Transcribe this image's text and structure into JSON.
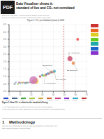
{
  "chart_data": {
    "type": "scatter",
    "title": "Figure 1: CO₂ per Inhabitant (tonnes) 2006",
    "pdf_label": "PDF",
    "page_title": [
      "Data Visualiser shows it:",
      "standard of live and CO₂ not correlated"
    ],
    "authors": [
      "2010-01-17, 17:11 pages – electronic format by Stephan Koenig (for the link)",
      "By Prof. Dr. Wolfgang Feist, University of Innsbruck and Passive House Institut"
    ],
    "caption_title": "Figure 1: How CO₂ is related to the standard of living:",
    "caption": [
      "y-Axis: CO₂-Emissions per Capita (metric tons) of selected plotted against",
      "x-axis: GNI (income per capita, USD-PPP-per-person) as an indicator of living standard value"
    ],
    "methodology_title": "1    Methodology",
    "methodology": [
      "The tool for creating these kind of plots is published by world bank, see:",
      "http://www.worldbank.org/node/6281"
    ],
    "points": [
      {
        "x": 5,
        "y": 0.5,
        "r": 2.0,
        "color": "#aaaaaa"
      },
      {
        "x": 6,
        "y": 0.6,
        "r": 1.5,
        "color": "#88aacc"
      },
      {
        "x": 8,
        "y": 0.5,
        "r": 1.5,
        "color": "#99bb55"
      },
      {
        "x": 9,
        "y": 0.6,
        "r": 1.5,
        "color": "#cc6699"
      },
      {
        "x": 10,
        "y": 0.55,
        "r": 1.5,
        "color": "#55aadd"
      },
      {
        "x": 11,
        "y": 0.6,
        "r": 1.5,
        "color": "#ddaa55"
      },
      {
        "x": 12,
        "y": 0.55,
        "r": 1.5,
        "color": "#99ccaa"
      },
      {
        "x": 13,
        "y": 0.6,
        "r": 1.5,
        "color": "#cc99aa"
      },
      {
        "x": 14,
        "y": 0.58,
        "r": 1.5,
        "color": "#aabb77"
      },
      {
        "x": 15,
        "y": 0.55,
        "r": 2.0,
        "color": "#7799cc"
      },
      {
        "x": 16,
        "y": 0.6,
        "r": 1.5,
        "color": "#cc7766"
      },
      {
        "x": 17,
        "y": 0.58,
        "r": 1.5,
        "color": "#66cc99"
      },
      {
        "x": 18,
        "y": 0.6,
        "r": 1.5,
        "color": "#bb99dd"
      },
      {
        "x": 19,
        "y": 0.62,
        "r": 1.5,
        "color": "#ddbb66"
      },
      {
        "x": 20,
        "y": 0.6,
        "r": 1.5,
        "color": "#66bbdd"
      },
      {
        "x": 21,
        "y": 0.58,
        "r": 1.5,
        "color": "#dd8866"
      },
      {
        "x": 22,
        "y": 0.62,
        "r": 1.5,
        "color": "#88dd88"
      },
      {
        "x": 22,
        "y": 0.65,
        "r": 3.0,
        "color": "#ee9944"
      },
      {
        "x": 24,
        "y": 0.6,
        "r": 1.5,
        "color": "#88bbcc"
      },
      {
        "x": 25,
        "y": 0.58,
        "r": 1.5,
        "color": "#ddcc66"
      },
      {
        "x": 24,
        "y": 0.7,
        "r": 5.0,
        "color": "#f0c040"
      },
      {
        "x": 22,
        "y": 0.75,
        "r": 7.0,
        "color": "#cc77bb"
      },
      {
        "x": 28,
        "y": 1.0,
        "r": 2.0,
        "color": "#cc4444"
      },
      {
        "x": 30,
        "y": 1.1,
        "r": 2.0,
        "color": "#4488cc"
      },
      {
        "x": 31,
        "y": 1.05,
        "r": 2.0,
        "color": "#88cc44"
      },
      {
        "x": 33,
        "y": 1.1,
        "r": 2.5,
        "color": "#cc8844"
      },
      {
        "x": 34,
        "y": 1.15,
        "r": 2.0,
        "color": "#4488cc"
      },
      {
        "x": 35,
        "y": 1.2,
        "r": 2.5,
        "color": "#88aacc"
      },
      {
        "x": 36,
        "y": 1.18,
        "r": 2.0,
        "color": "#cc6688"
      },
      {
        "x": 37,
        "y": 1.25,
        "r": 2.0,
        "color": "#66cc88"
      },
      {
        "x": 38,
        "y": 1.3,
        "r": 2.5,
        "color": "#cc8888"
      },
      {
        "x": 39,
        "y": 1.28,
        "r": 2.0,
        "color": "#8866cc"
      },
      {
        "x": 40,
        "y": 1.32,
        "r": 2.5,
        "color": "#ddaa44"
      },
      {
        "x": 41,
        "y": 1.35,
        "r": 2.5,
        "color": "#44aacc"
      },
      {
        "x": 55,
        "y": 2.2,
        "r": 4.5,
        "color": "#cc4466"
      },
      {
        "x": 58,
        "y": 1.9,
        "r": 3.0,
        "color": "#ee8844"
      },
      {
        "x": 62,
        "y": 3.5,
        "r": 2.5,
        "color": "#ee4444"
      }
    ],
    "annotations": [
      {
        "x": 55,
        "y": 2.2,
        "text": "El Afghanistan"
      },
      {
        "x": 58,
        "y": 1.9,
        "text": "BR Braziliens"
      },
      {
        "x": 38,
        "y": 1.3,
        "text": "EU Europes"
      },
      {
        "x": 41,
        "y": 1.35,
        "text": "US Americas"
      },
      {
        "x": 33,
        "y": 1.1,
        "text": "ZA Southafrica"
      }
    ],
    "reference_lines": [
      {
        "x": 49,
        "color": "#cc3333",
        "line_style": "dashed"
      }
    ],
    "side_legend_colors": [
      "#cc3333",
      "#ee6622",
      "#ddcc22",
      "#66cc22",
      "#22aaaa",
      "#2266cc",
      "#8833cc"
    ],
    "bottom_legend": [
      {
        "label": "El Afghanistan",
        "color": "#2244cc"
      },
      {
        "label": null,
        "color": "#446688"
      },
      {
        "label": "El Brazil",
        "color": "#44aa44"
      },
      {
        "label": "El Europe",
        "color": "#aacc44"
      },
      {
        "label": "El Africa",
        "color": "#ccaa44"
      },
      {
        "label": "El Americas",
        "color": "#cc6633"
      },
      {
        "label": "El Asia",
        "color": "#cc4488"
      },
      {
        "label": "El Oceania",
        "color": "#8833cc"
      },
      {
        "label": "El Russia",
        "color": "#33aacc"
      },
      {
        "label": "El Qatar",
        "color": "#cc3333"
      }
    ],
    "xlim": [
      0,
      70
    ],
    "xticks": [
      0,
      10,
      20,
      30,
      40,
      50,
      60,
      70
    ],
    "ylim": [
      0,
      4.5
    ],
    "yticks": [
      {
        "value": 0,
        "label": "0.0"
      },
      0.5,
      {
        "value": 1,
        "label": "1.0"
      },
      1.5,
      {
        "value": 2,
        "label": "2.0"
      },
      2.5,
      {
        "value": 3,
        "label": "3.0"
      },
      3.5,
      {
        "value": 4,
        "label": "4.0"
      },
      4.5
    ],
    "grid": true
  }
}
